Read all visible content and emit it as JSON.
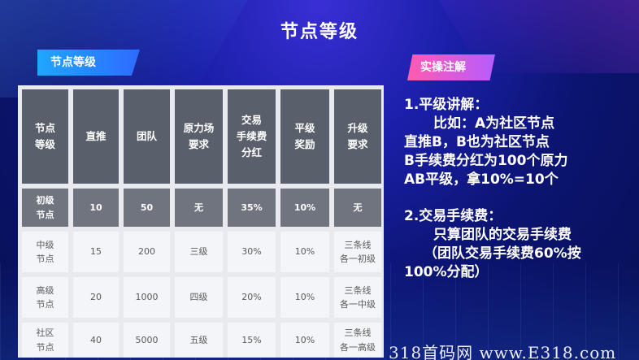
{
  "title": "节点等级",
  "left_tag": "节点等级",
  "right_tag": "实操注解",
  "table": {
    "headers": [
      [
        "节点",
        "等级"
      ],
      [
        "直推"
      ],
      [
        "团队"
      ],
      [
        "原力场",
        "要求"
      ],
      [
        "交易",
        "手续费",
        "分红"
      ],
      [
        "平级",
        "奖励"
      ],
      [
        "升级",
        "要求"
      ]
    ],
    "rows": [
      [
        [
          "初级",
          "节点"
        ],
        [
          "10"
        ],
        [
          "50"
        ],
        [
          "无"
        ],
        [
          "35%"
        ],
        [
          "10%"
        ],
        [
          "无"
        ]
      ],
      [
        [
          "中级",
          "节点"
        ],
        [
          "15"
        ],
        [
          "200"
        ],
        [
          "三级"
        ],
        [
          "30%"
        ],
        [
          "10%"
        ],
        [
          "三条线",
          "各一初级"
        ]
      ],
      [
        [
          "高级",
          "节点"
        ],
        [
          "20"
        ],
        [
          "1000"
        ],
        [
          "四级"
        ],
        [
          "20%"
        ],
        [
          "10%"
        ],
        [
          "三条线",
          "各一中级"
        ]
      ],
      [
        [
          "社区",
          "节点"
        ],
        [
          "40"
        ],
        [
          "5000"
        ],
        [
          "五级"
        ],
        [
          "15%"
        ],
        [
          "10%"
        ],
        [
          "三条线",
          "各一高级"
        ]
      ]
    ]
  },
  "notes": {
    "p1_title": "1.平级讲解：",
    "p1_lines": [
      "比如：A为社区节点",
      "直推B，B也为社区节点",
      "B手续费分红为100个原力",
      "AB平级，拿10%=10个"
    ],
    "p2_title": "2.交易手续费：",
    "p2_lines": [
      "只算团队的交易手续费",
      "（团队交易手续费60%按",
      "100%分配）"
    ]
  },
  "watermark": "318首码网 www.E318.com"
}
